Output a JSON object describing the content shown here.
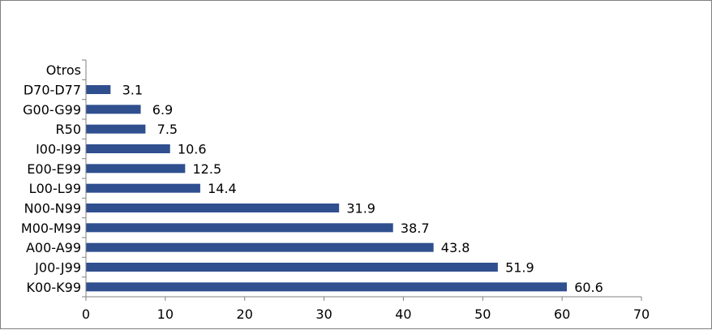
{
  "chart_data": {
    "type": "bar",
    "orientation": "horizontal",
    "categories": [
      "K00-K99",
      "J00-J99",
      "A00-A99",
      "M00-M99",
      "N00-N99",
      "L00-L99",
      "E00-E99",
      "I00-I99",
      "R50",
      "G00-G99",
      "D70-D77",
      "Otros"
    ],
    "values": [
      60.6,
      51.9,
      43.8,
      38.7,
      31.9,
      14.4,
      12.5,
      10.6,
      7.5,
      6.9,
      3.1,
      null
    ],
    "data_labels": [
      "60.6",
      "51.9",
      "43.8",
      "38.7",
      "31.9",
      "14.4",
      "12.5",
      "10.6",
      "7.5",
      "6.9",
      "3.1",
      ""
    ],
    "xlim": [
      0,
      70
    ],
    "xticks": [
      0,
      10,
      20,
      30,
      40,
      50,
      60,
      70
    ],
    "bar_color": "#2F4F8F",
    "grid": false,
    "legend": "none"
  }
}
